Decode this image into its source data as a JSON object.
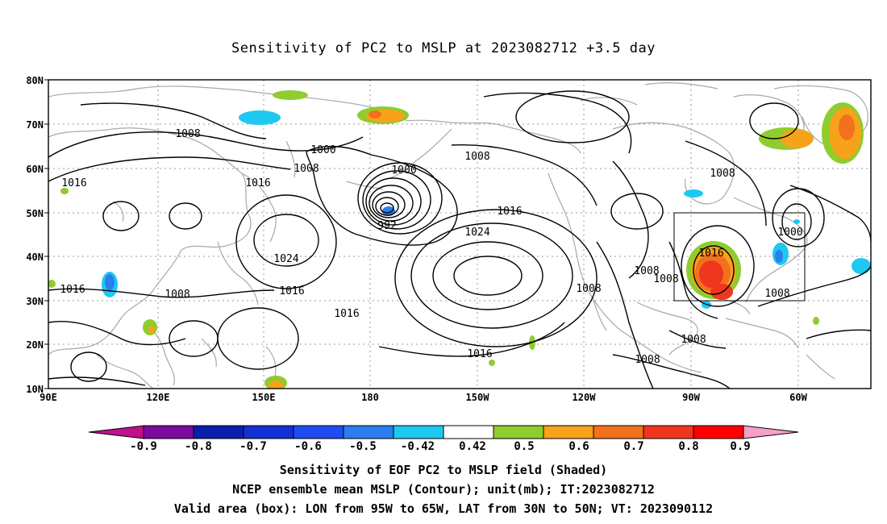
{
  "title": "Sensitivity of PC2 to MSLP at 2023082712 +3.5 day",
  "lat_labels": [
    "80N",
    "70N",
    "60N",
    "50N",
    "40N",
    "30N",
    "20N",
    "10N"
  ],
  "lon_labels": [
    "90E",
    "120E",
    "150E",
    "180",
    "150W",
    "120W",
    "90W",
    "60W"
  ],
  "contour_labels": [
    "1008",
    "1016",
    "1000",
    "1008",
    "1016",
    "1000",
    "992",
    "1008",
    "1024",
    "1016",
    "1024",
    "1016",
    "1008",
    "1016",
    "1016",
    "1008",
    "1008",
    "1008",
    "1016",
    "1000",
    "1008",
    "1008",
    "1008",
    "1008",
    "1016"
  ],
  "colorbar": {
    "labels": [
      "-0.9",
      "-0.8",
      "-0.7",
      "-0.6",
      "-0.5",
      "-0.42",
      "0.42",
      "0.5",
      "0.6",
      "0.7",
      "0.8",
      "0.9"
    ],
    "colors": [
      "#7d0a9e",
      "#0a1fa8",
      "#1230d4",
      "#1f4cf0",
      "#2a7ef0",
      "#1ec8f0",
      "#ffffff",
      "#8fcc2e",
      "#f7a21a",
      "#f2711c",
      "#f0361e",
      "#ff0000"
    ],
    "under_color": "#c0108c",
    "over_color": "#f5a0c8"
  },
  "captions": [
    "Sensitivity of EOF PC2 to MSLP field (Shaded)",
    "NCEP ensemble mean MSLP (Contour); unit(mb); IT:2023082712",
    "Valid area (box): LON from 95W to 65W, LAT from 30N to 50N; VT: 2023090112"
  ]
}
